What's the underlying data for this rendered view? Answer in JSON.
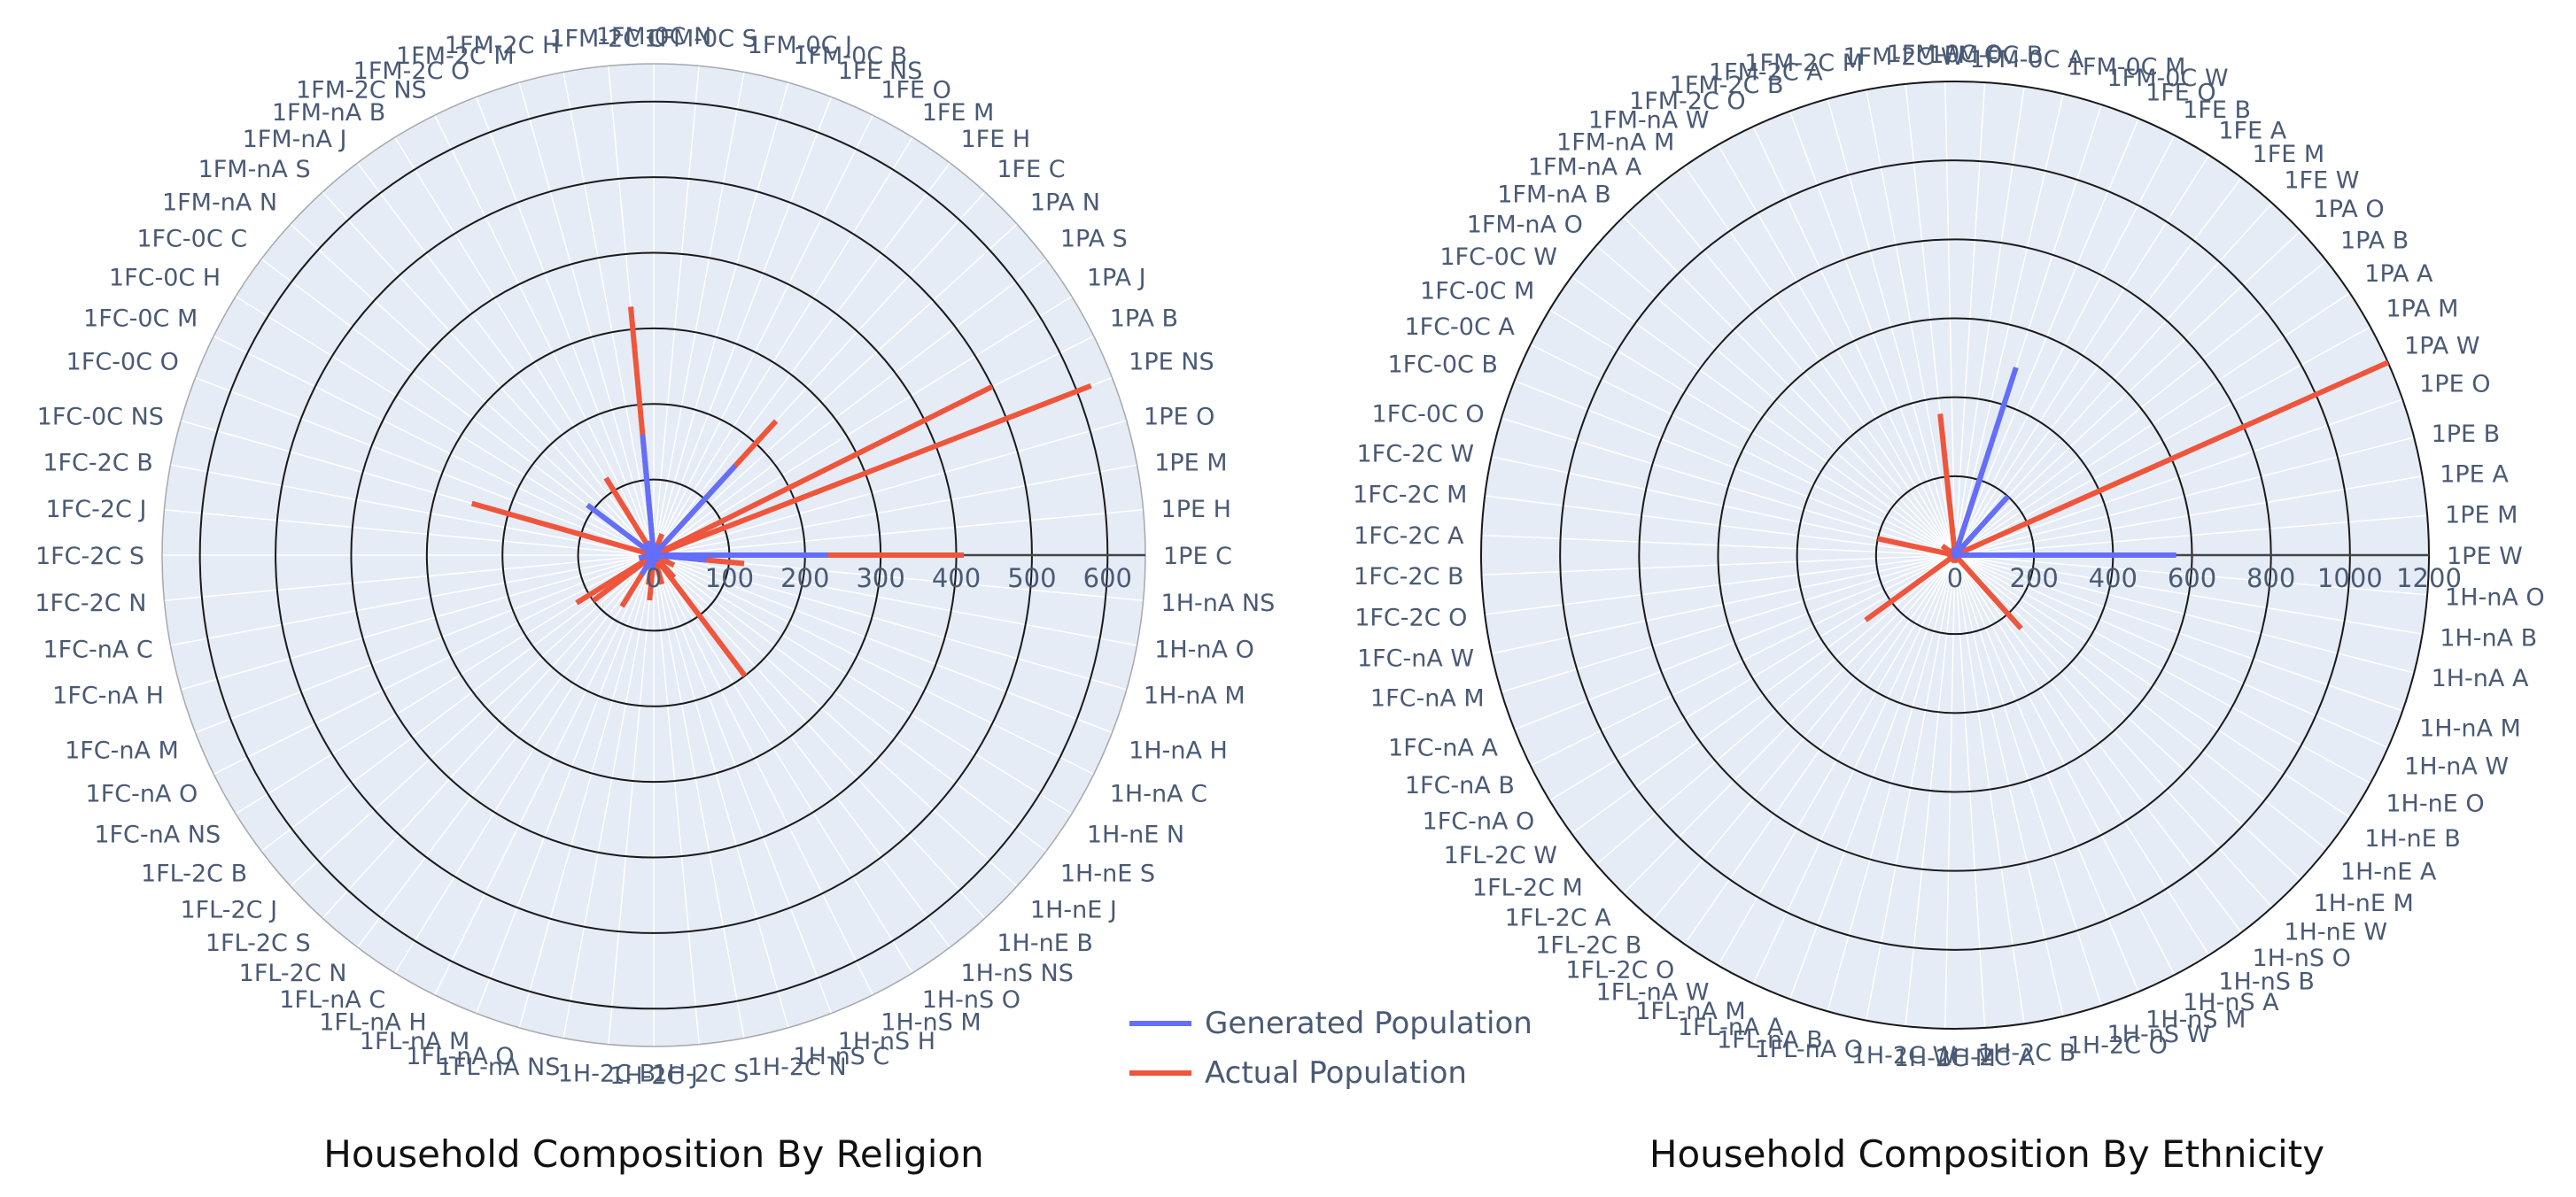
{
  "colors": {
    "generated": "#636efa",
    "actual": "#ef553b",
    "polar_bg": "#e5ecf6",
    "grid_circle": "#1a1a1a",
    "spoke": "#ffffff",
    "axis_line": "#444444",
    "label": "#4a5a75"
  },
  "legend": {
    "generated": "Generated Population",
    "actual": "Actual Population"
  },
  "chart_data": [
    {
      "type": "polar-bar",
      "title": "Household Composition By Religion",
      "radial_range": [
        0,
        650
      ],
      "radial_ticks": [
        0,
        100,
        200,
        300,
        400,
        500,
        600
      ],
      "grid": true,
      "legend_position": "bottom-right",
      "categories": [
        "1PE C",
        "1PE H",
        "1PE M",
        "1PE O",
        "1PE NS",
        "1PA B",
        "1PA J",
        "1PA S",
        "1PA N",
        "1FE C",
        "1FE H",
        "1FE M",
        "1FE O",
        "1FE NS",
        "1FM-0C B",
        "1FM-0C J",
        "1FM-0C S",
        "1FM-0C N",
        "1FM-2C C",
        "1FM-2C H",
        "1FM-2C M",
        "1FM-2C O",
        "1FM-2C NS",
        "1FM-nA B",
        "1FM-nA J",
        "1FM-nA S",
        "1FM-nA N",
        "1FC-0C C",
        "1FC-0C H",
        "1FC-0C M",
        "1FC-0C O",
        "1FC-0C NS",
        "1FC-2C B",
        "1FC-2C J",
        "1FC-2C S",
        "1FC-2C N",
        "1FC-nA C",
        "1FC-nA H",
        "1FC-nA M",
        "1FC-nA O",
        "1FC-nA NS",
        "1FL-2C B",
        "1FL-2C J",
        "1FL-2C S",
        "1FL-2C N",
        "1FL-nA C",
        "1FL-nA H",
        "1FL-nA M",
        "1FL-nA O",
        "1FL-nA NS",
        "1H-2C B",
        "1H-2C J",
        "1H-2C S",
        "1H-2C N",
        "1H-nS C",
        "1H-nS H",
        "1H-nS M",
        "1H-nS O",
        "1H-nS NS",
        "1H-nE B",
        "1H-nE J",
        "1H-nE S",
        "1H-nE N",
        "1H-nA C",
        "1H-nA H",
        "1H-nA M",
        "1H-nA O",
        "1H-nA NS"
      ],
      "series": [
        {
          "name": "Generated Population",
          "values": [
            230,
            5,
            3,
            2,
            3,
            2,
            0,
            0,
            0,
            160,
            5,
            3,
            2,
            15,
            2,
            0,
            0,
            0,
            160,
            3,
            2,
            2,
            8,
            20,
            0,
            0,
            0,
            110,
            3,
            2,
            2,
            10,
            3,
            0,
            0,
            0,
            20,
            2,
            2,
            2,
            5,
            5,
            0,
            0,
            0,
            30,
            2,
            2,
            2,
            6,
            20,
            0,
            0,
            0,
            5,
            2,
            2,
            2,
            10,
            5,
            0,
            0,
            0,
            10,
            2,
            2,
            3,
            70
          ]
        },
        {
          "name": "Actual Population",
          "values": [
            410,
            10,
            5,
            5,
            620,
            500,
            0,
            0,
            0,
            240,
            8,
            5,
            5,
            30,
            15,
            0,
            0,
            0,
            330,
            8,
            5,
            5,
            20,
            120,
            0,
            0,
            0,
            10,
            8,
            8,
            5,
            250,
            10,
            0,
            0,
            0,
            10,
            8,
            8,
            5,
            120,
            100,
            0,
            0,
            0,
            80,
            8,
            8,
            5,
            40,
            60,
            0,
            0,
            0,
            40,
            8,
            8,
            5,
            200,
            40,
            0,
            0,
            0,
            30,
            8,
            8,
            10,
            120
          ]
        }
      ]
    },
    {
      "type": "polar-bar",
      "title": "Household Composition By Ethnicity",
      "radial_range": [
        0,
        1200
      ],
      "radial_ticks": [
        0,
        200,
        400,
        600,
        800,
        1000,
        1200
      ],
      "grid": true,
      "categories": [
        "1PE W",
        "1PE M",
        "1PE A",
        "1PE B",
        "1PE O",
        "1PA W",
        "1PA M",
        "1PA A",
        "1PA B",
        "1PA O",
        "1FE W",
        "1FE M",
        "1FE A",
        "1FE B",
        "1FE O",
        "1FM-0C W",
        "1FM-0C M",
        "1FM-0C A",
        "1FM-0C B",
        "1FM-0C O",
        "1FM-2C W",
        "1FM-2C M",
        "1FM-2C A",
        "1FM-2C B",
        "1FM-2C O",
        "1FM-nA W",
        "1FM-nA M",
        "1FM-nA A",
        "1FM-nA B",
        "1FM-nA O",
        "1FC-0C W",
        "1FC-0C M",
        "1FC-0C A",
        "1FC-0C B",
        "1FC-0C O",
        "1FC-2C W",
        "1FC-2C M",
        "1FC-2C A",
        "1FC-2C B",
        "1FC-2C O",
        "1FC-nA W",
        "1FC-nA M",
        "1FC-nA A",
        "1FC-nA B",
        "1FC-nA O",
        "1FL-2C W",
        "1FL-2C M",
        "1FL-2C A",
        "1FL-2C B",
        "1FL-2C O",
        "1FL-nA W",
        "1FL-nA M",
        "1FL-nA A",
        "1FL-nA B",
        "1FL-nA O",
        "1H-2C W",
        "1H-2C M",
        "1H-2C A",
        "1H-2C B",
        "1H-2C O",
        "1H-nS W",
        "1H-nS M",
        "1H-nS A",
        "1H-nS B",
        "1H-nS O",
        "1H-nE W",
        "1H-nE M",
        "1H-nE A",
        "1H-nE B",
        "1H-nE O",
        "1H-nA W",
        "1H-nA M",
        "1H-nA A",
        "1H-nA B",
        "1H-nA O"
      ],
      "series": [
        {
          "name": "Generated Population",
          "values": [
            560,
            5,
            5,
            3,
            3,
            10,
            2,
            2,
            2,
            2,
            200,
            5,
            3,
            3,
            3,
            500,
            10,
            5,
            3,
            3,
            20,
            5,
            3,
            3,
            3,
            5,
            3,
            3,
            3,
            3,
            10,
            3,
            3,
            3,
            3,
            5,
            3,
            3,
            3,
            3,
            5,
            3,
            3,
            3,
            3,
            5,
            3,
            3,
            3,
            3,
            5,
            3,
            3,
            3,
            3,
            5,
            3,
            3,
            3,
            3,
            10,
            3,
            3,
            3,
            3,
            5,
            3,
            3,
            3,
            3,
            5,
            3,
            3,
            3,
            3
          ]
        },
        {
          "name": "Actual Population",
          "values": [
            500,
            10,
            8,
            5,
            5,
            1200,
            10,
            5,
            5,
            5,
            60,
            8,
            5,
            5,
            5,
            230,
            10,
            5,
            5,
            10,
            360,
            5,
            5,
            5,
            5,
            20,
            5,
            5,
            5,
            5,
            40,
            5,
            5,
            5,
            5,
            200,
            5,
            5,
            5,
            5,
            20,
            5,
            5,
            5,
            5,
            280,
            5,
            5,
            5,
            5,
            20,
            5,
            5,
            5,
            5,
            20,
            5,
            5,
            5,
            5,
            20,
            5,
            5,
            5,
            5,
            250,
            5,
            5,
            5,
            5,
            10,
            5,
            5,
            5,
            5
          ]
        }
      ]
    }
  ]
}
